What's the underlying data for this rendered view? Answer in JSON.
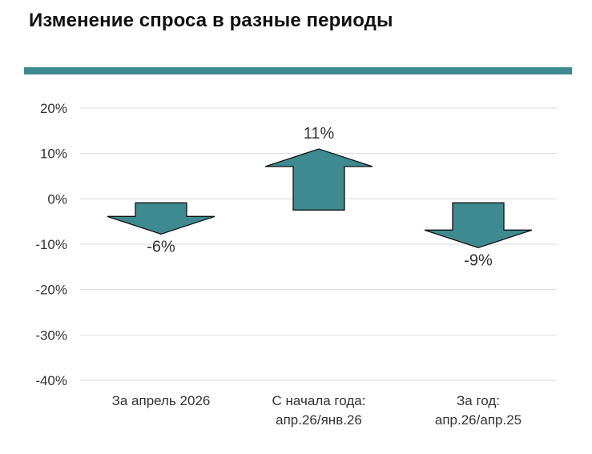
{
  "title": "Изменение спроса в разные периоды",
  "colors": {
    "band": "#3e8a91",
    "arrow_fill": "#3e8a91",
    "arrow_stroke": "#111111",
    "grid": "#d9d9d9"
  },
  "chart_data": {
    "type": "bar",
    "title": "Изменение спроса в разные периоды",
    "xlabel": "",
    "ylabel": "",
    "ylim": [
      -40,
      20
    ],
    "yticks": [
      20,
      10,
      0,
      -10,
      -20,
      -30,
      -40
    ],
    "ytick_labels": [
      "20%",
      "10%",
      "0%",
      "-10%",
      "-20%",
      "-30%",
      "-40%"
    ],
    "grid": true,
    "categories": [
      [
        "За апрель 2026"
      ],
      [
        "С начала года:",
        "апр.26/янв.26"
      ],
      [
        "За год:",
        "апр.26/апр.25"
      ]
    ],
    "values": [
      -6,
      11,
      -9
    ],
    "data_labels": [
      "-6%",
      "11%",
      "-9%"
    ],
    "marker": "arrow"
  }
}
